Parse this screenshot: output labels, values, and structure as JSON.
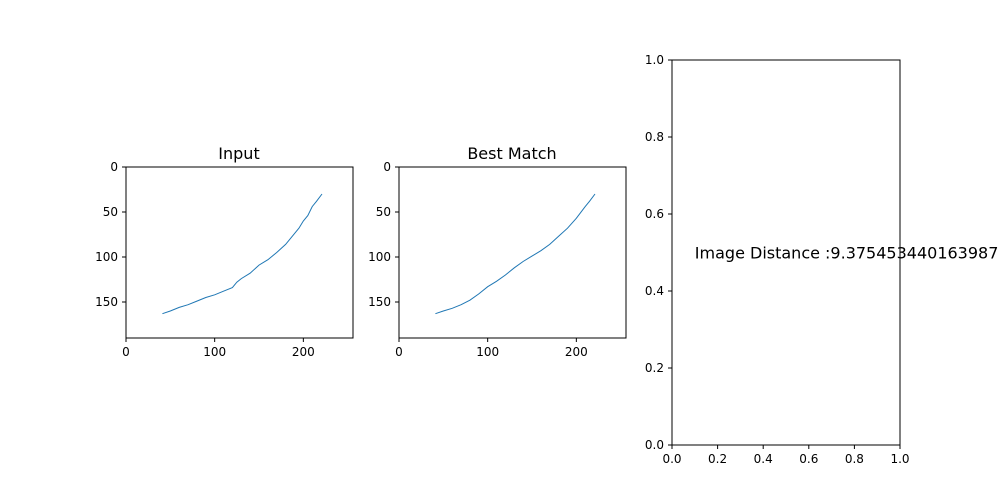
{
  "chart_data": [
    {
      "type": "line",
      "title": "Input",
      "xlabel": "",
      "ylabel": "",
      "xlim": [
        0,
        256
      ],
      "ylim": [
        190,
        0
      ],
      "y_inverted": true,
      "xticks": [
        0,
        100,
        200
      ],
      "yticks": [
        0,
        50,
        100,
        150
      ],
      "line_color": "#1f77b4",
      "series": [
        {
          "x": [
            41,
            50,
            60,
            70,
            80,
            90,
            100,
            110,
            120,
            125,
            130,
            140,
            150,
            160,
            170,
            180,
            190,
            195,
            200,
            205,
            210,
            215,
            221
          ],
          "y": [
            163,
            160,
            156,
            153,
            149,
            145,
            142,
            138,
            134,
            128,
            124,
            118,
            109,
            103,
            95,
            86,
            74,
            68,
            60,
            54,
            44,
            38,
            30
          ]
        }
      ]
    },
    {
      "type": "line",
      "title": "Best Match",
      "xlabel": "",
      "ylabel": "",
      "xlim": [
        0,
        256
      ],
      "ylim": [
        190,
        0
      ],
      "y_inverted": true,
      "xticks": [
        0,
        100,
        200
      ],
      "yticks": [
        0,
        50,
        100,
        150
      ],
      "line_color": "#1f77b4",
      "series": [
        {
          "x": [
            41,
            50,
            60,
            70,
            80,
            90,
            100,
            110,
            120,
            130,
            140,
            150,
            160,
            170,
            180,
            190,
            200,
            210,
            215,
            221
          ],
          "y": [
            163,
            160,
            157,
            153,
            148,
            141,
            133,
            127,
            120,
            112,
            105,
            99,
            93,
            86,
            77,
            68,
            57,
            44,
            38,
            30
          ]
        }
      ]
    },
    {
      "type": "scatter",
      "title": "",
      "xlim": [
        0.0,
        1.0
      ],
      "ylim": [
        0.0,
        1.0
      ],
      "xticks": [
        "0.0",
        "0.2",
        "0.4",
        "0.6",
        "0.8",
        "1.0"
      ],
      "yticks": [
        "0.0",
        "0.2",
        "0.4",
        "0.6",
        "0.8",
        "1.0"
      ],
      "annotation": {
        "text": "Image Distance :9.375453440163987",
        "x": 0.1,
        "y": 0.5
      }
    }
  ]
}
